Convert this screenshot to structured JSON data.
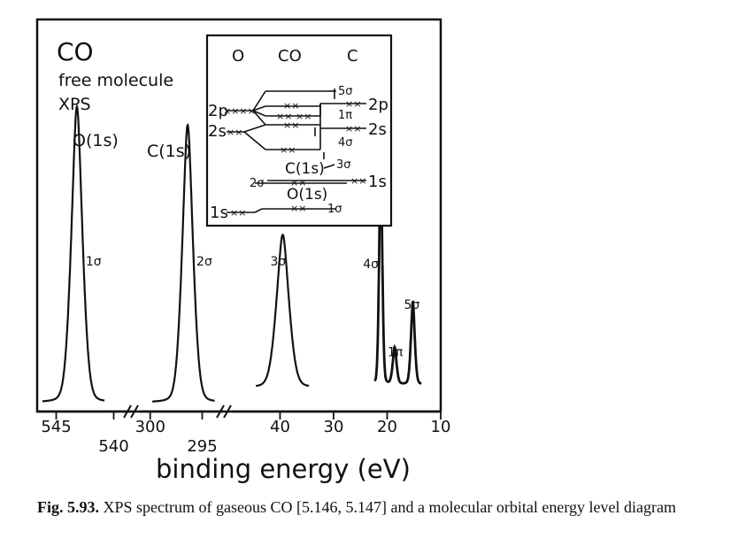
{
  "panel": {
    "molecule": "CO",
    "line2": "free molecule",
    "line3": "XPS"
  },
  "chart_data": {
    "type": "line",
    "xlabel": "binding energy (eV)",
    "x_axis_reversed": true,
    "axis_break": true,
    "segments": [
      {
        "ticks": [
          545,
          540
        ],
        "range": [
          546.5,
          538.5
        ]
      },
      {
        "ticks": [
          300,
          295
        ],
        "range": [
          301,
          293
        ]
      },
      {
        "ticks": [
          40,
          30,
          20,
          10
        ],
        "range": [
          49,
          10
        ]
      }
    ],
    "peaks": [
      {
        "core": "O(1s)",
        "orbital": "1σ",
        "energy": 543.2,
        "relative_height": 0.97
      },
      {
        "core": "C(1s)",
        "orbital": "2σ",
        "energy": 296.4,
        "relative_height": 0.91
      },
      {
        "orbital": "3σ",
        "energy": 39.5,
        "relative_height": 0.5
      },
      {
        "orbital": "4σ",
        "energy": 21.2,
        "relative_height": 0.75
      },
      {
        "orbital": "1π",
        "energy": 18.6,
        "relative_height": 0.12
      },
      {
        "orbital": "5σ",
        "energy": 15.2,
        "relative_height": 0.27
      }
    ]
  },
  "mo_diagram": {
    "columns": [
      "O",
      "CO",
      "C"
    ],
    "left_levels": [
      "2p",
      "2s",
      "1s"
    ],
    "right_levels": [
      "2p",
      "2s",
      "1s"
    ],
    "mo_labels": [
      "5σ",
      "1π",
      "4σ",
      "3σ",
      "2σ",
      "1σ"
    ],
    "core_labels": [
      "C(1s)",
      "O(1s)"
    ]
  },
  "caption": {
    "label": "Fig. 5.93.",
    "text": " XPS spectrum of gaseous CO [5.146, 5.147] and a molecular orbital energy level diagram"
  }
}
